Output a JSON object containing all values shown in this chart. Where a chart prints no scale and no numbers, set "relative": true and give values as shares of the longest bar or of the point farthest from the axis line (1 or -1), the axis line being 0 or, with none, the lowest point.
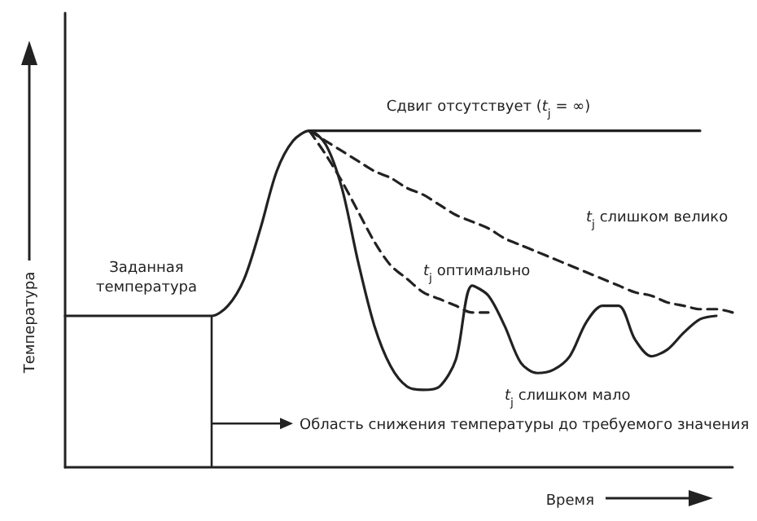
{
  "chart_data": {
    "type": "line",
    "relative": true,
    "xlabel": "Время",
    "ylabel": "Температура",
    "marker": "none",
    "categories": [
      null,
      null,
      null,
      null,
      null,
      null,
      null,
      null,
      null,
      null,
      null,
      null,
      null,
      null,
      null,
      null,
      null,
      null,
      null,
      null,
      null,
      null,
      null,
      null,
      null,
      null,
      null,
      null,
      null,
      null,
      null,
      null,
      null,
      null,
      null,
      null,
      null,
      null,
      null,
      null,
      null,
      null
    ],
    "series": [
      {
        "name": "t$_{j}$ слишком мало",
        "color": "#222222",
        "line_style": "solid",
        "values": [
          0.45,
          0.45,
          0.45,
          0.45,
          0.45,
          0.45,
          0.45,
          0.45,
          0.45,
          0.45,
          0.48,
          0.56,
          0.71,
          0.88,
          0.97,
          1.0,
          0.96,
          0.83,
          0.61,
          0.42,
          0.3,
          0.24,
          0.23,
          0.24,
          0.32,
          0.54,
          0.51,
          0.42,
          0.31,
          0.28,
          0.29,
          0.33,
          0.43,
          0.48,
          0.48,
          0.38,
          0.33,
          0.35,
          0.4,
          0.44,
          0.45,
          null
        ]
      },
      {
        "name": "Сдвиг отсутствует (t$_{j}$ = ∞)",
        "color": "#222222",
        "line_style": "solid",
        "values": [
          null,
          null,
          null,
          null,
          null,
          null,
          null,
          null,
          null,
          null,
          null,
          null,
          null,
          null,
          null,
          1.0,
          1.0,
          1.0,
          1.0,
          1.0,
          1.0,
          1.0,
          1.0,
          1.0,
          1.0,
          1.0,
          1.0,
          1.0,
          1.0,
          1.0,
          1.0,
          1.0,
          1.0,
          1.0,
          1.0,
          1.0,
          1.0,
          1.0,
          1.0,
          1.0,
          null,
          null
        ]
      },
      {
        "name": "t$_{j}$ слишком велико",
        "color": "#222222",
        "line_style": "dashed",
        "values": [
          null,
          null,
          null,
          null,
          null,
          null,
          null,
          null,
          null,
          null,
          null,
          null,
          null,
          null,
          null,
          1.0,
          0.97,
          0.94,
          0.91,
          0.88,
          0.86,
          0.83,
          0.81,
          0.78,
          0.75,
          0.73,
          0.71,
          0.68,
          0.66,
          0.64,
          0.62,
          0.6,
          0.58,
          0.56,
          0.54,
          0.52,
          0.51,
          0.49,
          0.48,
          0.47,
          0.47,
          0.46
        ]
      },
      {
        "name": "t$_{j}$ оптимально",
        "color": "#222222",
        "line_style": "dashed",
        "values": [
          null,
          null,
          null,
          null,
          null,
          null,
          null,
          null,
          null,
          null,
          null,
          null,
          null,
          null,
          null,
          1.0,
          0.93,
          0.85,
          0.76,
          0.67,
          0.6,
          0.56,
          0.52,
          0.5,
          0.48,
          0.46,
          0.46,
          null,
          null,
          null,
          null,
          null,
          null,
          null,
          null,
          null,
          null,
          null,
          null,
          null,
          null,
          null
        ]
      }
    ],
    "annotations": [
      "Заданная температура",
      "Область снижения температуры до требуемого значения"
    ]
  }
}
